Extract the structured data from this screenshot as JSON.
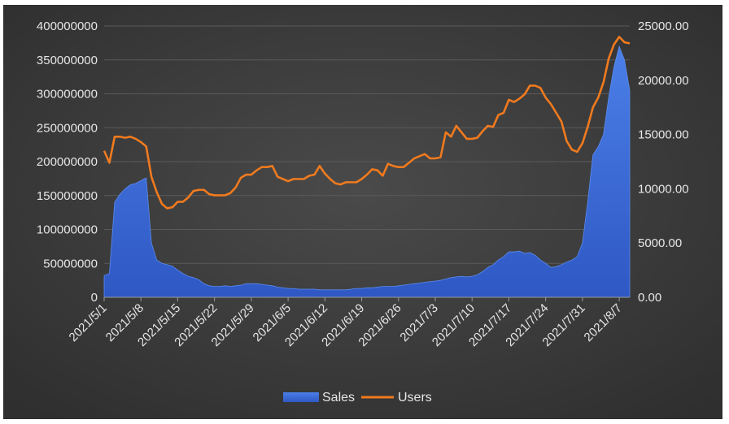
{
  "chart_data": {
    "type": "area+line",
    "title": "",
    "xlabel": "",
    "ylabel_left": "",
    "ylabel_right": "",
    "x_ticks": [
      "2021/5/1",
      "2021/5/8",
      "2021/5/15",
      "2021/5/22",
      "2021/5/29",
      "2021/6/5",
      "2021/6/12",
      "2021/6/19",
      "2021/6/26",
      "2021/7/3",
      "2021/7/10",
      "2021/7/17",
      "2021/7/24",
      "2021/7/31",
      "2021/8/7"
    ],
    "y_left": {
      "min": 0,
      "max": 400000000,
      "ticks": [
        "0",
        "50000000",
        "100000000",
        "150000000",
        "200000000",
        "250000000",
        "300000000",
        "350000000",
        "400000000"
      ]
    },
    "y_right": {
      "min": 0,
      "max": 25000,
      "ticks": [
        "0.00",
        "5000.00",
        "10000.00",
        "15000.00",
        "20000.00",
        "25000.00"
      ]
    },
    "grid": true,
    "legend_position": "bottom",
    "colors": {
      "background": "#3b3b3b",
      "sales": "#3a68d8",
      "users": "#f07a1e",
      "grid": "#5a5a5a"
    },
    "series": [
      {
        "name": "Sales",
        "kind": "area",
        "axis": "left",
        "x": [
          "2021/5/1",
          "2021/5/2",
          "2021/5/3",
          "2021/5/4",
          "2021/5/5",
          "2021/5/6",
          "2021/5/7",
          "2021/5/8",
          "2021/5/9",
          "2021/5/10",
          "2021/5/11",
          "2021/5/12",
          "2021/5/13",
          "2021/5/14",
          "2021/5/15",
          "2021/5/16",
          "2021/5/17",
          "2021/5/18",
          "2021/5/19",
          "2021/5/20",
          "2021/5/21",
          "2021/5/22",
          "2021/5/23",
          "2021/5/24",
          "2021/5/25",
          "2021/5/26",
          "2021/5/27",
          "2021/5/28",
          "2021/5/29",
          "2021/5/30",
          "2021/5/31",
          "2021/6/1",
          "2021/6/2",
          "2021/6/3",
          "2021/6/4",
          "2021/6/5",
          "2021/6/6",
          "2021/6/7",
          "2021/6/8",
          "2021/6/9",
          "2021/6/10",
          "2021/6/11",
          "2021/6/12",
          "2021/6/13",
          "2021/6/14",
          "2021/6/15",
          "2021/6/16",
          "2021/6/17",
          "2021/6/18",
          "2021/6/19",
          "2021/6/20",
          "2021/6/21",
          "2021/6/22",
          "2021/6/23",
          "2021/6/24",
          "2021/6/25",
          "2021/6/26",
          "2021/6/27",
          "2021/6/28",
          "2021/6/29",
          "2021/6/30",
          "2021/7/1",
          "2021/7/2",
          "2021/7/3",
          "2021/7/4",
          "2021/7/5",
          "2021/7/6",
          "2021/7/7",
          "2021/7/8",
          "2021/7/9",
          "2021/7/10",
          "2021/7/11",
          "2021/7/12",
          "2021/7/13",
          "2021/7/14",
          "2021/7/15",
          "2021/7/16",
          "2021/7/17",
          "2021/7/18",
          "2021/7/19",
          "2021/7/20",
          "2021/7/21",
          "2021/7/22",
          "2021/7/23",
          "2021/7/24",
          "2021/7/25",
          "2021/7/26",
          "2021/7/27",
          "2021/7/28",
          "2021/7/29",
          "2021/7/30",
          "2021/7/31",
          "2021/8/1",
          "2021/8/2",
          "2021/8/3",
          "2021/8/4",
          "2021/8/5",
          "2021/8/6",
          "2021/8/7",
          "2021/8/8",
          "2021/8/9"
        ],
        "values": [
          32000000,
          35000000,
          140000000,
          152000000,
          160000000,
          166000000,
          168000000,
          172000000,
          176000000,
          80000000,
          55000000,
          50000000,
          48000000,
          46000000,
          40000000,
          35000000,
          31000000,
          29000000,
          26000000,
          20000000,
          17000000,
          16000000,
          16000000,
          17000000,
          16000000,
          17000000,
          18000000,
          20000000,
          20000000,
          20000000,
          19000000,
          18000000,
          17000000,
          15000000,
          14000000,
          13000000,
          13000000,
          12000000,
          12000000,
          12000000,
          12000000,
          11000000,
          11000000,
          11000000,
          11000000,
          11000000,
          11000000,
          12000000,
          13000000,
          13000000,
          14000000,
          14000000,
          15000000,
          16000000,
          16000000,
          16000000,
          17000000,
          18000000,
          19000000,
          20000000,
          21000000,
          22000000,
          23000000,
          24000000,
          25000000,
          27000000,
          29000000,
          30000000,
          31000000,
          30000000,
          31000000,
          33000000,
          38000000,
          44000000,
          48000000,
          55000000,
          60000000,
          67000000,
          67000000,
          68000000,
          65000000,
          66000000,
          62000000,
          55000000,
          50000000,
          44000000,
          45000000,
          48000000,
          52000000,
          55000000,
          60000000,
          80000000,
          140000000,
          210000000,
          222000000,
          240000000,
          295000000,
          340000000,
          370000000,
          350000000,
          305000000
        ]
      },
      {
        "name": "Users",
        "kind": "line",
        "axis": "right",
        "x": [
          "2021/5/1",
          "2021/5/2",
          "2021/5/3",
          "2021/5/4",
          "2021/5/5",
          "2021/5/6",
          "2021/5/7",
          "2021/5/8",
          "2021/5/9",
          "2021/5/10",
          "2021/5/11",
          "2021/5/12",
          "2021/5/13",
          "2021/5/14",
          "2021/5/15",
          "2021/5/16",
          "2021/5/17",
          "2021/5/18",
          "2021/5/19",
          "2021/5/20",
          "2021/5/21",
          "2021/5/22",
          "2021/5/23",
          "2021/5/24",
          "2021/5/25",
          "2021/5/26",
          "2021/5/27",
          "2021/5/28",
          "2021/5/29",
          "2021/5/30",
          "2021/5/31",
          "2021/6/1",
          "2021/6/2",
          "2021/6/3",
          "2021/6/4",
          "2021/6/5",
          "2021/6/6",
          "2021/6/7",
          "2021/6/8",
          "2021/6/9",
          "2021/6/10",
          "2021/6/11",
          "2021/6/12",
          "2021/6/13",
          "2021/6/14",
          "2021/6/15",
          "2021/6/16",
          "2021/6/17",
          "2021/6/18",
          "2021/6/19",
          "2021/6/20",
          "2021/6/21",
          "2021/6/22",
          "2021/6/23",
          "2021/6/24",
          "2021/6/25",
          "2021/6/26",
          "2021/6/27",
          "2021/6/28",
          "2021/6/29",
          "2021/6/30",
          "2021/7/1",
          "2021/7/2",
          "2021/7/3",
          "2021/7/4",
          "2021/7/5",
          "2021/7/6",
          "2021/7/7",
          "2021/7/8",
          "2021/7/9",
          "2021/7/10",
          "2021/7/11",
          "2021/7/12",
          "2021/7/13",
          "2021/7/14",
          "2021/7/15",
          "2021/7/16",
          "2021/7/17",
          "2021/7/18",
          "2021/7/19",
          "2021/7/20",
          "2021/7/21",
          "2021/7/22",
          "2021/7/23",
          "2021/7/24",
          "2021/7/25",
          "2021/7/26",
          "2021/7/27",
          "2021/7/28",
          "2021/7/29",
          "2021/7/30",
          "2021/7/31",
          "2021/8/1",
          "2021/8/2",
          "2021/8/3",
          "2021/8/4",
          "2021/8/5",
          "2021/8/6",
          "2021/8/7",
          "2021/8/8",
          "2021/8/9"
        ],
        "values": [
          13500,
          12400,
          14800,
          14800,
          14700,
          14800,
          14600,
          14300,
          13900,
          11100,
          9700,
          8600,
          8200,
          8300,
          8800,
          8800,
          9200,
          9800,
          9900,
          9900,
          9500,
          9400,
          9400,
          9400,
          9600,
          10100,
          11000,
          11300,
          11300,
          11700,
          12000,
          12000,
          12100,
          11100,
          10900,
          10700,
          10900,
          10900,
          10900,
          11200,
          11300,
          12100,
          11400,
          10900,
          10500,
          10400,
          10600,
          10600,
          10600,
          10900,
          11300,
          11800,
          11700,
          11200,
          12300,
          12100,
          12000,
          12000,
          12400,
          12800,
          13000,
          13200,
          12800,
          12800,
          12900,
          15200,
          14800,
          15800,
          15200,
          14600,
          14600,
          14700,
          15300,
          15800,
          15700,
          16800,
          17000,
          18200,
          18000,
          18300,
          18700,
          19500,
          19500,
          19300,
          18400,
          17800,
          17000,
          16200,
          14400,
          13600,
          13400,
          14200,
          15700,
          17500,
          18400,
          19800,
          22000,
          23300,
          24000,
          23500,
          23400
        ]
      }
    ]
  }
}
